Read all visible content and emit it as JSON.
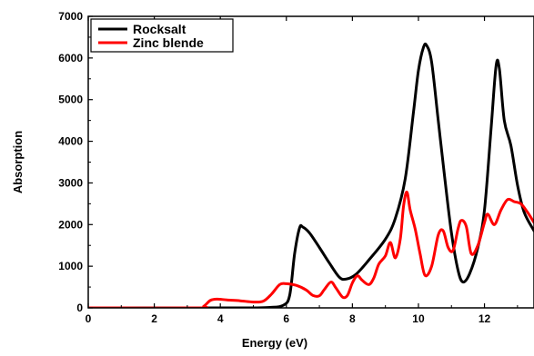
{
  "chart_data": {
    "type": "line",
    "xlabel": "Energy (eV)",
    "ylabel": "Absorption",
    "xlim": [
      0,
      13.5
    ],
    "ylim": [
      0,
      7000
    ],
    "x_ticks": [
      0,
      2,
      4,
      6,
      8,
      10,
      12
    ],
    "y_ticks": [
      0,
      1000,
      2000,
      3000,
      4000,
      5000,
      6000,
      7000
    ],
    "legend_position": "top-left",
    "series": [
      {
        "name": "Rocksalt",
        "color": "#000000",
        "points": [
          [
            0,
            0
          ],
          [
            4.5,
            0
          ],
          [
            5.0,
            0
          ],
          [
            5.5,
            10
          ],
          [
            5.9,
            60
          ],
          [
            6.1,
            300
          ],
          [
            6.25,
            1300
          ],
          [
            6.4,
            1920
          ],
          [
            6.5,
            1940
          ],
          [
            6.7,
            1800
          ],
          [
            7.0,
            1450
          ],
          [
            7.3,
            1080
          ],
          [
            7.6,
            740
          ],
          [
            7.8,
            690
          ],
          [
            8.1,
            800
          ],
          [
            8.5,
            1150
          ],
          [
            9.0,
            1650
          ],
          [
            9.3,
            2150
          ],
          [
            9.6,
            3100
          ],
          [
            9.85,
            4700
          ],
          [
            10.0,
            5700
          ],
          [
            10.15,
            6250
          ],
          [
            10.25,
            6300
          ],
          [
            10.4,
            5900
          ],
          [
            10.6,
            4500
          ],
          [
            10.8,
            3100
          ],
          [
            11.0,
            1800
          ],
          [
            11.2,
            900
          ],
          [
            11.35,
            620
          ],
          [
            11.55,
            820
          ],
          [
            11.8,
            1450
          ],
          [
            12.0,
            2350
          ],
          [
            12.2,
            4300
          ],
          [
            12.35,
            5800
          ],
          [
            12.45,
            5750
          ],
          [
            12.6,
            4500
          ],
          [
            12.8,
            3900
          ],
          [
            13.0,
            2950
          ],
          [
            13.2,
            2300
          ],
          [
            13.5,
            1850
          ]
        ]
      },
      {
        "name": "Zinc blende",
        "color": "#ff0000",
        "points": [
          [
            0,
            0
          ],
          [
            3.3,
            0
          ],
          [
            3.5,
            40
          ],
          [
            3.7,
            180
          ],
          [
            3.9,
            210
          ],
          [
            4.2,
            190
          ],
          [
            4.6,
            170
          ],
          [
            5.0,
            140
          ],
          [
            5.3,
            160
          ],
          [
            5.55,
            330
          ],
          [
            5.8,
            560
          ],
          [
            6.0,
            580
          ],
          [
            6.3,
            540
          ],
          [
            6.6,
            430
          ],
          [
            6.8,
            300
          ],
          [
            7.0,
            290
          ],
          [
            7.15,
            440
          ],
          [
            7.35,
            620
          ],
          [
            7.5,
            480
          ],
          [
            7.7,
            260
          ],
          [
            7.85,
            300
          ],
          [
            8.0,
            600
          ],
          [
            8.15,
            770
          ],
          [
            8.3,
            660
          ],
          [
            8.5,
            560
          ],
          [
            8.65,
            720
          ],
          [
            8.8,
            1050
          ],
          [
            9.0,
            1250
          ],
          [
            9.15,
            1570
          ],
          [
            9.3,
            1200
          ],
          [
            9.45,
            1650
          ],
          [
            9.55,
            2450
          ],
          [
            9.65,
            2780
          ],
          [
            9.75,
            2350
          ],
          [
            9.9,
            1900
          ],
          [
            10.05,
            1300
          ],
          [
            10.2,
            780
          ],
          [
            10.4,
            1000
          ],
          [
            10.6,
            1750
          ],
          [
            10.75,
            1850
          ],
          [
            10.9,
            1450
          ],
          [
            11.05,
            1380
          ],
          [
            11.2,
            1900
          ],
          [
            11.3,
            2100
          ],
          [
            11.45,
            1950
          ],
          [
            11.6,
            1300
          ],
          [
            11.8,
            1500
          ],
          [
            12.0,
            2050
          ],
          [
            12.1,
            2250
          ],
          [
            12.3,
            2000
          ],
          [
            12.5,
            2350
          ],
          [
            12.7,
            2600
          ],
          [
            12.9,
            2550
          ],
          [
            13.1,
            2500
          ],
          [
            13.3,
            2300
          ],
          [
            13.5,
            2050
          ]
        ]
      }
    ]
  }
}
